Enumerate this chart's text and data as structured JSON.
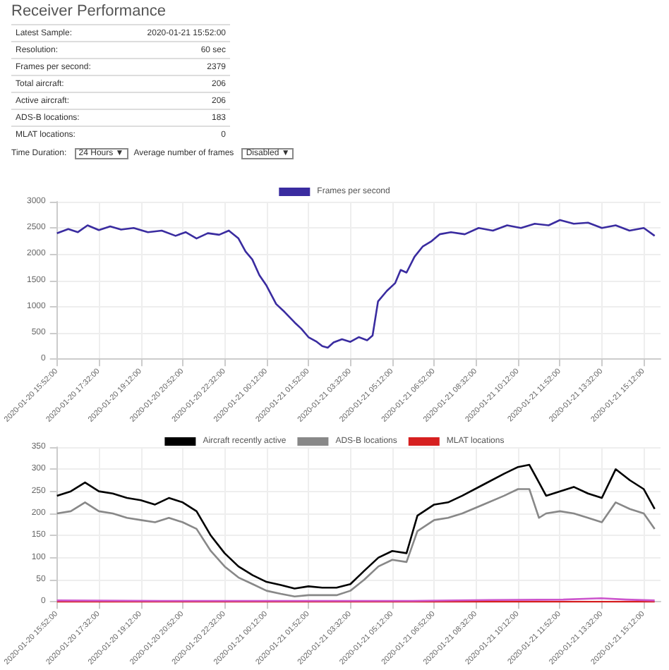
{
  "chart_data": [
    {
      "type": "other",
      "title": "Receiver Performance",
      "annotations": [
        "Latest Sample:",
        "2020-01-21 15:52:00",
        "Resolution:",
        "60 sec",
        "Frames per second:",
        "2379",
        "Total aircraft:",
        "206",
        "Active aircraft:",
        "206",
        "ADS-B locations:",
        "183",
        "MLAT locations:",
        "0",
        "Time Duration:",
        "24 Hours ▼",
        "Average number of frames",
        "Disabled ▼"
      ]
    },
    {
      "type": "line",
      "xlim": [
        "2020-01-20T15:52",
        "2020-01-21T15:52"
      ],
      "xticks": [
        {
          "value": "2020-01-20T15:52",
          "label": "2020-01-20 15:52:00"
        },
        {
          "value": "2020-01-20T17:32",
          "label": "2020-01-20 17:32:00"
        },
        {
          "value": "2020-01-20T19:12",
          "label": "2020-01-20 19:12:00"
        },
        {
          "value": "2020-01-20T20:52",
          "label": "2020-01-20 20:52:00"
        },
        {
          "value": "2020-01-20T22:32",
          "label": "2020-01-20 22:32:00"
        },
        {
          "value": "2020-01-21T00:12",
          "label": "2020-01-21 00:12:00"
        },
        {
          "value": "2020-01-21T01:52",
          "label": "2020-01-21 01:52:00"
        },
        {
          "value": "2020-01-21T03:32",
          "label": "2020-01-21 03:32:00"
        },
        {
          "value": "2020-01-21T05:12",
          "label": "2020-01-21 05:12:00"
        },
        {
          "value": "2020-01-21T06:52",
          "label": "2020-01-21 06:52:00"
        },
        {
          "value": "2020-01-21T08:32",
          "label": "2020-01-21 08:32:00"
        },
        {
          "value": "2020-01-21T10:12",
          "label": "2020-01-21 10:12:00"
        },
        {
          "value": "2020-01-21T11:52",
          "label": "2020-01-21 11:52:00"
        },
        {
          "value": "2020-01-21T13:32",
          "label": "2020-01-21 13:32:00"
        },
        {
          "value": "2020-01-21T15:12",
          "label": "2020-01-21 15:12:00"
        }
      ],
      "ylim": [
        0,
        3000
      ],
      "yticks": [
        0,
        500,
        1000,
        1500,
        2000,
        2500,
        3000
      ],
      "grid": true,
      "legend": "top",
      "marker": "none",
      "series": [
        {
          "name": "Frames per second",
          "color": "#3a2ca0",
          "x": [
            "2020-01-20T15:52",
            "2020-01-20T16:19",
            "2020-01-20T16:42",
            "2020-01-20T17:05",
            "2020-01-20T17:32",
            "2020-01-20T17:59",
            "2020-01-20T18:25",
            "2020-01-20T18:55",
            "2020-01-20T19:29",
            "2020-01-20T20:02",
            "2020-01-20T20:35",
            "2020-01-20T20:59",
            "2020-01-20T21:25",
            "2020-01-20T21:52",
            "2020-01-20T22:19",
            "2020-01-20T22:42",
            "2020-01-20T23:05",
            "2020-01-20T23:22",
            "2020-01-20T23:38",
            "2020-01-20T23:55",
            "2020-01-21T00:12",
            "2020-01-21T00:35",
            "2020-01-21T00:55",
            "2020-01-21T01:19",
            "2020-01-21T01:35",
            "2020-01-21T01:52",
            "2020-01-21T02:12",
            "2020-01-21T02:25",
            "2020-01-21T02:38",
            "2020-01-21T02:52",
            "2020-01-21T03:12",
            "2020-01-21T03:32",
            "2020-01-21T03:52",
            "2020-01-21T04:12",
            "2020-01-21T04:25",
            "2020-01-21T04:38",
            "2020-01-21T04:59",
            "2020-01-21T05:19",
            "2020-01-21T05:32",
            "2020-01-21T05:46",
            "2020-01-21T06:05",
            "2020-01-21T06:25",
            "2020-01-21T06:46",
            "2020-01-21T07:05",
            "2020-01-21T07:32",
            "2020-01-21T08:05",
            "2020-01-21T08:38",
            "2020-01-21T09:12",
            "2020-01-21T09:46",
            "2020-01-21T10:19",
            "2020-01-21T10:52",
            "2020-01-21T11:25",
            "2020-01-21T11:52",
            "2020-01-21T12:25",
            "2020-01-21T12:59",
            "2020-01-21T13:32",
            "2020-01-21T14:05",
            "2020-01-21T14:38",
            "2020-01-21T15:12",
            "2020-01-21T15:38"
          ],
          "values": [
            2400,
            2480,
            2420,
            2550,
            2460,
            2530,
            2470,
            2500,
            2420,
            2450,
            2350,
            2420,
            2300,
            2400,
            2370,
            2450,
            2300,
            2050,
            1900,
            1600,
            1400,
            1050,
            900,
            700,
            580,
            420,
            330,
            250,
            220,
            320,
            380,
            330,
            420,
            360,
            450,
            1100,
            1300,
            1450,
            1700,
            1650,
            1950,
            2150,
            2250,
            2380,
            2420,
            2380,
            2500,
            2450,
            2550,
            2500,
            2580,
            2550,
            2650,
            2580,
            2600,
            2500,
            2550,
            2450,
            2500,
            2350
          ]
        }
      ]
    },
    {
      "type": "line",
      "xlim": [
        "2020-01-20T15:52",
        "2020-01-21T15:52"
      ],
      "xticks": [
        {
          "value": "2020-01-20T15:52",
          "label": "2020-01-20 15:52:00"
        },
        {
          "value": "2020-01-20T17:32",
          "label": "2020-01-20 17:32:00"
        },
        {
          "value": "2020-01-20T19:12",
          "label": "2020-01-20 19:12:00"
        },
        {
          "value": "2020-01-20T20:52",
          "label": "2020-01-20 20:52:00"
        },
        {
          "value": "2020-01-20T22:32",
          "label": "2020-01-20 22:32:00"
        },
        {
          "value": "2020-01-21T00:12",
          "label": "2020-01-21 00:12:00"
        },
        {
          "value": "2020-01-21T01:52",
          "label": "2020-01-21 01:52:00"
        },
        {
          "value": "2020-01-21T03:32",
          "label": "2020-01-21 03:32:00"
        },
        {
          "value": "2020-01-21T05:12",
          "label": "2020-01-21 05:12:00"
        },
        {
          "value": "2020-01-21T06:52",
          "label": "2020-01-21 06:52:00"
        },
        {
          "value": "2020-01-21T08:32",
          "label": "2020-01-21 08:32:00"
        },
        {
          "value": "2020-01-21T10:12",
          "label": "2020-01-21 10:12:00"
        },
        {
          "value": "2020-01-21T11:52",
          "label": "2020-01-21 11:52:00"
        },
        {
          "value": "2020-01-21T13:32",
          "label": "2020-01-21 13:32:00"
        },
        {
          "value": "2020-01-21T15:12",
          "label": "2020-01-21 15:12:00"
        }
      ],
      "ylim": [
        0,
        350
      ],
      "yticks": [
        0,
        50,
        100,
        150,
        200,
        250,
        300,
        350
      ],
      "grid": true,
      "legend": "top",
      "marker": "none",
      "series": [
        {
          "name": "Aircraft recently active",
          "color": "#000000",
          "x": [
            "2020-01-20T15:52",
            "2020-01-20T16:25",
            "2020-01-20T16:59",
            "2020-01-20T17:32",
            "2020-01-20T18:05",
            "2020-01-20T18:39",
            "2020-01-20T19:12",
            "2020-01-20T19:46",
            "2020-01-20T20:19",
            "2020-01-20T20:52",
            "2020-01-20T21:25",
            "2020-01-20T21:59",
            "2020-01-20T22:32",
            "2020-01-20T23:05",
            "2020-01-20T23:39",
            "2020-01-21T00:12",
            "2020-01-21T00:46",
            "2020-01-21T01:19",
            "2020-01-21T01:52",
            "2020-01-21T02:25",
            "2020-01-21T02:59",
            "2020-01-21T03:32",
            "2020-01-21T04:05",
            "2020-01-21T04:39",
            "2020-01-21T05:12",
            "2020-01-21T05:46",
            "2020-01-21T06:12",
            "2020-01-21T06:52",
            "2020-01-21T07:25",
            "2020-01-21T07:59",
            "2020-01-21T08:49",
            "2020-01-21T09:39",
            "2020-01-21T10:12",
            "2020-01-21T10:39",
            "2020-01-21T11:02",
            "2020-01-21T11:19",
            "2020-01-21T11:52",
            "2020-01-21T12:25",
            "2020-01-21T12:59",
            "2020-01-21T13:32",
            "2020-01-21T14:05",
            "2020-01-21T14:39",
            "2020-01-21T15:12",
            "2020-01-21T15:38"
          ],
          "values": [
            240,
            250,
            270,
            250,
            245,
            235,
            230,
            220,
            235,
            225,
            205,
            150,
            110,
            80,
            60,
            45,
            38,
            30,
            35,
            32,
            32,
            40,
            70,
            100,
            115,
            110,
            195,
            220,
            225,
            240,
            265,
            290,
            305,
            310,
            270,
            240,
            250,
            260,
            245,
            235,
            300,
            275,
            255,
            210
          ]
        },
        {
          "name": "ADS-B locations",
          "color": "#888888",
          "x": [
            "2020-01-20T15:52",
            "2020-01-20T16:25",
            "2020-01-20T16:59",
            "2020-01-20T17:32",
            "2020-01-20T18:05",
            "2020-01-20T18:39",
            "2020-01-20T19:12",
            "2020-01-20T19:46",
            "2020-01-20T20:19",
            "2020-01-20T20:52",
            "2020-01-20T21:25",
            "2020-01-20T21:59",
            "2020-01-20T22:32",
            "2020-01-20T23:05",
            "2020-01-20T23:39",
            "2020-01-21T00:12",
            "2020-01-21T00:46",
            "2020-01-21T01:19",
            "2020-01-21T01:52",
            "2020-01-21T02:25",
            "2020-01-21T02:59",
            "2020-01-21T03:32",
            "2020-01-21T04:05",
            "2020-01-21T04:39",
            "2020-01-21T05:12",
            "2020-01-21T05:46",
            "2020-01-21T06:12",
            "2020-01-21T06:52",
            "2020-01-21T07:25",
            "2020-01-21T07:59",
            "2020-01-21T08:49",
            "2020-01-21T09:39",
            "2020-01-21T10:12",
            "2020-01-21T10:39",
            "2020-01-21T11:02",
            "2020-01-21T11:19",
            "2020-01-21T11:52",
            "2020-01-21T12:25",
            "2020-01-21T12:59",
            "2020-01-21T13:32",
            "2020-01-21T14:05",
            "2020-01-21T14:39",
            "2020-01-21T15:12",
            "2020-01-21T15:38"
          ],
          "values": [
            200,
            205,
            225,
            205,
            200,
            190,
            185,
            180,
            190,
            180,
            165,
            115,
            80,
            55,
            40,
            25,
            18,
            12,
            15,
            15,
            15,
            25,
            50,
            80,
            95,
            90,
            160,
            185,
            190,
            200,
            220,
            240,
            255,
            255,
            190,
            200,
            205,
            200,
            190,
            180,
            225,
            210,
            200,
            165
          ]
        },
        {
          "name": "MLAT locations",
          "color": "#d62020",
          "x": [
            "2020-01-20T15:52",
            "2020-01-21T15:38"
          ],
          "values": [
            0,
            0
          ]
        },
        {
          "color": "#cc55cc",
          "x": [
            "2020-01-20T15:52",
            "2020-01-20T20:00",
            "2020-01-21T01:00",
            "2020-01-21T06:00",
            "2020-01-21T09:00",
            "2020-01-21T12:00",
            "2020-01-21T13:30",
            "2020-01-21T14:30",
            "2020-01-21T15:38"
          ],
          "values": [
            3,
            2,
            2,
            2,
            4,
            5,
            8,
            5,
            3
          ]
        }
      ]
    }
  ]
}
